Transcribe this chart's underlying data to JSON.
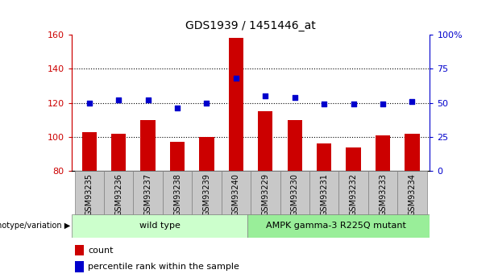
{
  "title": "GDS1939 / 1451446_at",
  "categories": [
    "GSM93235",
    "GSM93236",
    "GSM93237",
    "GSM93238",
    "GSM93239",
    "GSM93240",
    "GSM93229",
    "GSM93230",
    "GSM93231",
    "GSM93232",
    "GSM93233",
    "GSM93234"
  ],
  "counts": [
    103,
    102,
    110,
    97,
    100,
    158,
    115,
    110,
    96,
    94,
    101,
    102
  ],
  "percentiles": [
    50,
    52,
    52,
    46,
    50,
    68,
    55,
    54,
    49,
    49,
    49,
    51
  ],
  "ylim_left": [
    80,
    160
  ],
  "ylim_right": [
    0,
    100
  ],
  "yticks_left": [
    80,
    100,
    120,
    140,
    160
  ],
  "yticks_right": [
    0,
    25,
    50,
    75,
    100
  ],
  "yticklabels_right": [
    "0",
    "25",
    "50",
    "75",
    "100%"
  ],
  "bar_color": "#cc0000",
  "dot_color": "#0000cc",
  "left_tick_color": "#cc0000",
  "right_tick_color": "#0000cc",
  "wildtype_label": "wild type",
  "mutant_label": "AMPK gamma-3 R225Q mutant",
  "wildtype_color": "#ccffcc",
  "mutant_color": "#99ee99",
  "genotype_label": "genotype/variation",
  "legend_count": "count",
  "legend_percentile": "percentile rank within the sample",
  "n_wildtype": 6,
  "n_mutant": 6,
  "plot_bg_color": "#ffffff",
  "xtick_bg_color": "#c8c8c8",
  "bar_bottom": 80
}
